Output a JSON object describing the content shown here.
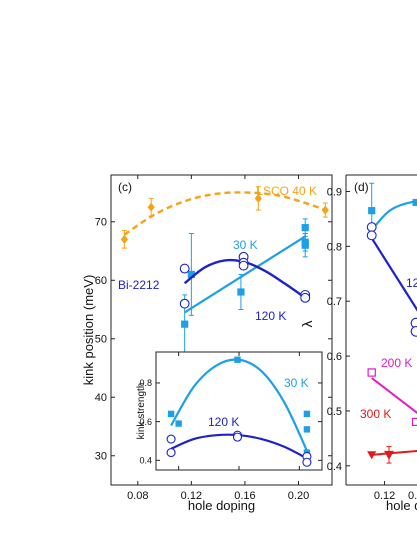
{
  "colors": {
    "lsco": "#f5a316",
    "bi": "#1e22c8",
    "cyan": "#1ea0e6",
    "magenta": "#e619c8",
    "red": "#e01b1b",
    "axis": "#222222"
  },
  "chart_data": [
    {
      "type": "scatter",
      "panel_label": "(c)",
      "xlabel": "hole doping",
      "ylabel": "kink position  (meV)",
      "xlim": [
        0.06,
        0.225
      ],
      "ylim": [
        25,
        78
      ],
      "xticks": [
        0.08,
        0.12,
        0.16,
        0.2
      ],
      "xtick_labels": [
        "0.08",
        "0.12",
        "0.16",
        "0.20"
      ],
      "yticks": [
        30,
        40,
        50,
        60,
        70
      ],
      "ytick_labels": [
        "30",
        "40",
        "50",
        "60",
        "70"
      ],
      "grid": false,
      "series": [
        {
          "name": "LSCO 40 K",
          "marker": "diamond",
          "x": [
            0.07,
            0.09,
            0.17,
            0.22
          ],
          "y": [
            67,
            72.5,
            74,
            72
          ],
          "yerr": [
            1.5,
            1.5,
            2,
            1.2
          ],
          "fit": "dashed",
          "fit_x": [
            0.07,
            0.093,
            0.116,
            0.139,
            0.162,
            0.185,
            0.208,
            0.22
          ],
          "fit_y": [
            67.8,
            71.3,
            73.6,
            74.8,
            75.0,
            74.5,
            73.0,
            72.0
          ]
        },
        {
          "name": "30 K",
          "marker": "square",
          "x": [
            0.115,
            0.12,
            0.157,
            0.205,
            0.205,
            0.205
          ],
          "y": [
            52.5,
            61,
            58,
            69,
            66.5,
            66
          ],
          "yerr": [
            5,
            7,
            3,
            1.5,
            1.5,
            2
          ],
          "fit": "line",
          "fit_x": [
            0.115,
            0.205
          ],
          "fit_y": [
            54.5,
            67.5
          ]
        },
        {
          "name": "120 K",
          "marker": "circle-open",
          "x": [
            0.115,
            0.115,
            0.159,
            0.159,
            0.159,
            0.205,
            0.205
          ],
          "y": [
            62,
            56,
            64,
            63,
            62.5,
            57.5,
            57
          ],
          "fit": "curve",
          "fit_x": [
            0.115,
            0.13,
            0.145,
            0.16,
            0.175,
            0.19,
            0.205
          ],
          "fit_y": [
            59.5,
            62.2,
            63.4,
            63.1,
            61.6,
            59.4,
            57.0
          ]
        }
      ],
      "annotations": [
        "LSCO 40 K",
        "30 K",
        "Bi-2212",
        "120 K"
      ]
    },
    {
      "type": "scatter",
      "panel_label": "",
      "inset": true,
      "xlabel": "",
      "ylabel": "kink strength",
      "xlim": [
        0.105,
        0.215
      ],
      "ylim": [
        0.35,
        0.96
      ],
      "xticks": [
        0.12,
        0.16,
        0.2
      ],
      "xtick_labels": [
        "0.12",
        "0.16",
        "0.20"
      ],
      "yticks": [
        0.4,
        0.6,
        0.8
      ],
      "ytick_labels": [
        "0.4",
        "0.6",
        "0.8"
      ],
      "series": [
        {
          "name": "30 K",
          "marker": "square",
          "x": [
            0.115,
            0.12,
            0.159,
            0.205,
            0.205,
            0.205
          ],
          "y": [
            0.64,
            0.59,
            0.92,
            0.64,
            0.56,
            0.44
          ],
          "fit": "curve",
          "fit_x": [
            0.115,
            0.13,
            0.145,
            0.16,
            0.175,
            0.19,
            0.205
          ],
          "fit_y": [
            0.58,
            0.78,
            0.89,
            0.92,
            0.86,
            0.7,
            0.45
          ]
        },
        {
          "name": "120 K",
          "marker": "circle-open",
          "x": [
            0.115,
            0.115,
            0.159,
            0.159,
            0.205,
            0.205
          ],
          "y": [
            0.51,
            0.44,
            0.53,
            0.52,
            0.42,
            0.39
          ],
          "fit": "curve",
          "fit_x": [
            0.115,
            0.13,
            0.145,
            0.16,
            0.175,
            0.19,
            0.205
          ],
          "fit_y": [
            0.46,
            0.51,
            0.53,
            0.53,
            0.51,
            0.47,
            0.41
          ]
        }
      ],
      "annotations": [
        "30 K",
        "120 K"
      ]
    },
    {
      "type": "scatter",
      "panel_label": "(d)",
      "xlabel": "hole d",
      "ylabel": "λ",
      "xlim": [
        0.105,
        0.14
      ],
      "ylim": [
        0.365,
        0.93
      ],
      "xticks": [
        0.12
      ],
      "xtick_labels": [
        "0.12"
      ],
      "yticks": [
        0.4,
        0.5,
        0.6,
        0.7,
        0.8,
        0.9
      ],
      "ytick_labels": [
        "0.4",
        "0.5",
        "0.6",
        "0.7",
        "0.8",
        "0.9"
      ],
      "series": [
        {
          "name": "30 K",
          "marker": "square",
          "x": [
            0.115
          ],
          "y": [
            0.865
          ],
          "yerr": [
            0.05
          ]
        },
        {
          "name": "120 K",
          "marker": "circle-open",
          "x": [
            0.115,
            0.115
          ],
          "y": [
            0.835,
            0.82
          ]
        },
        {
          "name": "200 K",
          "marker": "square-open",
          "x": [
            0.115
          ],
          "y": [
            0.57
          ]
        },
        {
          "name": "300 K",
          "marker": "triangle-down",
          "x": [
            0.115
          ],
          "y": [
            0.42
          ]
        }
      ],
      "annotations": [
        "12",
        "200 K",
        "300 K",
        "0."
      ]
    }
  ]
}
